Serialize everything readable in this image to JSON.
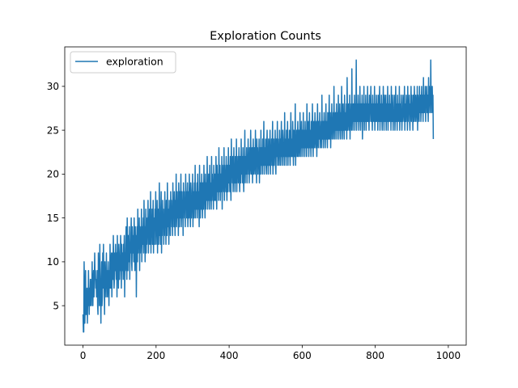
{
  "chart_data": {
    "type": "line",
    "title": "Exploration Counts",
    "xlabel": "",
    "ylabel": "",
    "xlim": [
      -50,
      1049
    ],
    "ylim": [
      0.5,
      34.5
    ],
    "xticks": [
      0,
      200,
      400,
      600,
      800,
      1000
    ],
    "yticks": [
      5,
      10,
      15,
      20,
      25,
      30
    ],
    "grid": false,
    "legend_position": "top-left",
    "series": [
      {
        "name": "exploration",
        "color": "#1f77b4",
        "x_start": 0,
        "x_step": 1,
        "y": [
          4,
          2,
          2,
          10,
          7,
          3,
          5,
          9,
          4,
          4,
          6,
          7,
          3,
          6,
          5,
          9,
          6,
          4,
          7,
          5,
          8,
          8,
          5,
          7,
          6,
          10,
          5,
          5,
          8,
          9,
          6,
          8,
          11,
          8,
          9,
          7,
          8,
          6,
          7,
          9,
          5,
          4,
          11,
          9,
          8,
          5,
          12,
          7,
          6,
          3,
          8,
          10,
          5,
          6,
          11,
          7,
          12,
          8,
          7,
          4,
          10,
          8,
          9,
          6,
          11,
          7,
          9,
          6,
          8,
          10,
          8,
          5,
          9,
          7,
          12,
          9,
          7,
          10,
          11,
          6,
          9,
          11,
          8,
          13,
          10,
          7,
          8,
          11,
          9,
          12,
          10,
          8,
          11,
          6,
          13,
          9,
          10,
          7,
          12,
          11,
          8,
          10,
          9,
          13,
          11,
          7,
          12,
          10,
          9,
          11,
          8,
          12,
          10,
          13,
          6,
          11,
          9,
          12,
          14,
          10,
          8,
          15,
          11,
          9,
          13,
          12,
          10,
          14,
          8,
          12,
          11,
          13,
          15,
          10,
          9,
          14,
          12,
          11,
          13,
          10,
          15,
          12,
          9,
          14,
          11,
          13,
          6,
          12,
          14,
          10,
          16,
          11,
          13,
          12,
          15,
          9,
          14,
          11,
          13,
          12,
          16,
          10,
          14,
          12,
          13,
          15,
          11,
          17,
          12,
          14,
          10,
          13,
          16,
          11,
          15,
          12,
          14,
          13,
          17,
          11,
          15,
          12,
          16,
          14,
          12,
          18,
          11,
          15,
          13,
          16,
          12,
          14,
          17,
          11,
          15,
          13,
          12,
          16,
          14,
          18,
          12,
          15,
          13,
          17,
          11,
          16,
          14,
          12,
          15,
          19,
          13,
          14,
          12,
          16,
          18,
          11,
          15,
          13,
          17,
          14,
          16,
          12,
          15,
          13,
          18,
          14,
          16,
          12,
          17,
          15,
          13,
          19,
          14,
          16,
          15,
          12,
          17,
          14,
          16,
          13,
          18,
          15,
          17,
          14,
          16,
          13,
          19,
          15,
          17,
          14,
          18,
          16,
          13,
          17,
          15,
          20,
          14,
          16,
          18,
          15,
          17,
          13,
          19,
          16,
          14,
          18,
          15,
          17,
          20,
          14,
          16,
          18,
          15,
          17,
          13,
          19,
          16,
          18,
          15,
          17,
          14,
          20,
          16,
          18,
          15,
          17,
          19,
          14,
          16,
          18,
          15,
          20,
          17,
          16,
          14,
          19,
          18,
          15,
          17,
          16,
          20,
          14,
          18,
          17,
          15,
          19,
          16,
          21,
          15,
          18,
          17,
          16,
          19,
          15,
          20,
          17,
          16,
          18,
          14,
          21,
          17,
          15,
          19,
          18,
          16,
          20,
          17,
          15,
          19,
          18,
          16,
          21,
          17,
          18,
          15,
          20,
          16,
          19,
          17,
          18,
          22,
          16,
          19,
          17,
          20,
          18,
          16,
          21,
          17,
          19,
          18,
          16,
          22,
          17,
          20,
          18,
          19,
          16,
          21,
          18,
          17,
          20,
          19,
          17,
          22,
          18,
          16,
          21,
          19,
          18,
          20,
          17,
          23,
          19,
          18,
          21,
          17,
          20,
          19,
          18,
          22,
          16,
          21,
          19,
          20,
          18,
          23,
          17,
          21,
          19,
          20,
          18,
          22,
          19,
          17,
          21,
          20,
          18,
          23,
          19,
          21,
          20,
          18,
          22,
          19,
          17,
          24,
          20,
          21,
          19,
          22,
          18,
          20,
          23,
          19,
          21,
          18,
          22,
          20,
          19,
          24,
          18,
          21,
          20,
          22,
          19,
          21,
          23,
          20,
          18,
          22,
          21,
          19,
          24,
          20,
          22,
          21,
          19,
          23,
          20,
          18,
          22,
          21,
          25,
          19,
          22,
          20,
          21,
          23,
          19,
          22,
          20,
          24,
          21,
          22,
          19,
          23,
          20,
          21,
          25,
          22,
          20,
          21,
          23,
          19,
          22,
          24,
          20,
          21,
          23,
          22,
          20,
          25,
          21,
          22,
          19,
          24,
          21,
          23,
          20,
          22,
          21,
          24,
          19,
          23,
          22,
          20,
          25,
          21,
          22,
          23,
          20,
          24,
          21,
          22,
          26,
          20,
          23,
          21,
          22,
          24,
          21,
          20,
          23,
          25,
          21,
          22,
          20,
          24,
          23,
          21,
          22,
          25,
          20,
          23,
          22,
          24,
          21,
          23,
          26,
          20,
          22,
          24,
          21,
          23,
          22,
          25,
          21,
          20,
          24,
          23,
          22,
          26,
          21,
          24,
          22,
          23,
          21,
          25,
          22,
          24,
          21,
          23,
          26,
          22,
          23,
          21,
          25,
          24,
          22,
          23,
          21,
          27,
          22,
          24,
          23,
          21,
          25,
          22,
          23,
          26,
          21,
          24,
          23,
          22,
          25,
          23,
          21,
          24,
          27,
          22,
          23,
          24,
          22,
          26,
          23,
          21,
          25,
          24,
          22,
          23,
          28,
          21,
          24,
          23,
          25,
          22,
          24,
          26,
          22,
          23,
          25,
          24,
          22,
          27,
          23,
          24,
          22,
          26,
          23,
          25,
          24,
          22,
          27,
          23,
          25,
          24,
          22,
          26,
          24,
          23,
          25,
          22,
          28,
          24,
          23,
          25,
          26,
          22,
          24,
          27,
          23,
          25,
          24,
          22,
          26,
          25,
          23,
          28,
          24,
          22,
          25,
          26,
          23,
          24,
          27,
          25,
          23,
          24,
          26,
          22,
          25,
          28,
          24,
          23,
          26,
          25,
          24,
          27,
          23,
          25,
          24,
          26,
          23,
          29,
          24,
          25,
          26,
          23,
          25,
          27,
          24,
          26,
          23,
          25,
          28,
          24,
          26,
          25,
          23,
          27,
          25,
          24,
          26,
          29,
          24,
          25,
          27,
          23,
          26,
          25,
          28,
          24,
          26,
          25,
          27,
          24,
          30,
          25,
          26,
          24,
          27,
          26,
          25,
          28,
          24,
          26,
          27,
          25,
          29,
          24,
          26,
          25,
          28,
          26,
          24,
          27,
          25,
          30,
          26,
          24,
          27,
          28,
          25,
          26,
          24,
          29,
          25,
          27,
          26,
          25,
          28,
          24,
          31,
          26,
          25,
          27,
          28,
          26,
          25,
          29,
          24,
          27,
          26,
          28,
          25,
          32,
          26,
          27,
          25,
          28,
          27,
          26,
          29,
          25,
          27,
          28,
          26,
          33,
          25,
          28,
          27,
          26,
          29,
          27,
          25,
          28,
          26,
          30,
          27,
          25,
          28,
          27,
          26,
          29,
          24,
          28,
          27,
          26,
          30,
          25,
          28,
          27,
          26,
          29,
          25,
          28,
          27,
          26,
          30,
          26,
          28,
          27,
          25,
          29,
          26,
          28,
          27,
          30,
          26,
          28,
          27,
          25,
          29,
          26,
          28,
          27,
          26,
          30,
          25,
          28,
          27,
          26,
          29,
          27,
          26,
          28,
          25,
          29,
          27,
          26,
          28,
          30,
          25,
          28,
          27,
          26,
          29,
          27,
          25,
          28,
          26,
          30,
          27,
          25,
          29,
          28,
          26,
          27,
          29,
          25,
          28,
          26,
          27,
          30,
          25,
          28,
          27,
          26,
          29,
          27,
          26,
          28,
          25,
          30,
          27,
          26,
          29,
          28,
          25,
          27,
          26,
          29,
          28,
          25,
          27,
          30,
          26,
          28,
          27,
          25,
          29,
          26,
          28,
          27,
          26,
          30,
          25,
          28,
          27,
          26,
          29,
          28,
          25,
          27,
          26,
          29,
          28,
          27,
          26,
          30,
          25,
          28,
          27,
          26,
          29,
          27,
          28,
          25,
          30,
          26,
          28,
          27,
          29,
          26,
          25,
          28,
          27,
          30,
          26,
          29,
          27,
          28,
          25,
          29,
          27,
          26,
          30,
          28,
          27,
          26,
          29,
          28,
          27,
          26,
          30,
          25,
          29,
          28,
          27,
          26,
          30,
          28,
          27,
          29,
          26,
          28,
          30,
          27,
          29,
          28,
          26,
          31,
          27,
          29,
          28,
          27,
          30,
          26,
          29,
          28,
          30,
          27,
          29,
          28,
          26,
          31,
          27,
          30,
          28,
          29,
          27,
          33,
          28,
          29,
          27,
          30,
          28,
          29,
          24
        ]
      }
    ]
  }
}
